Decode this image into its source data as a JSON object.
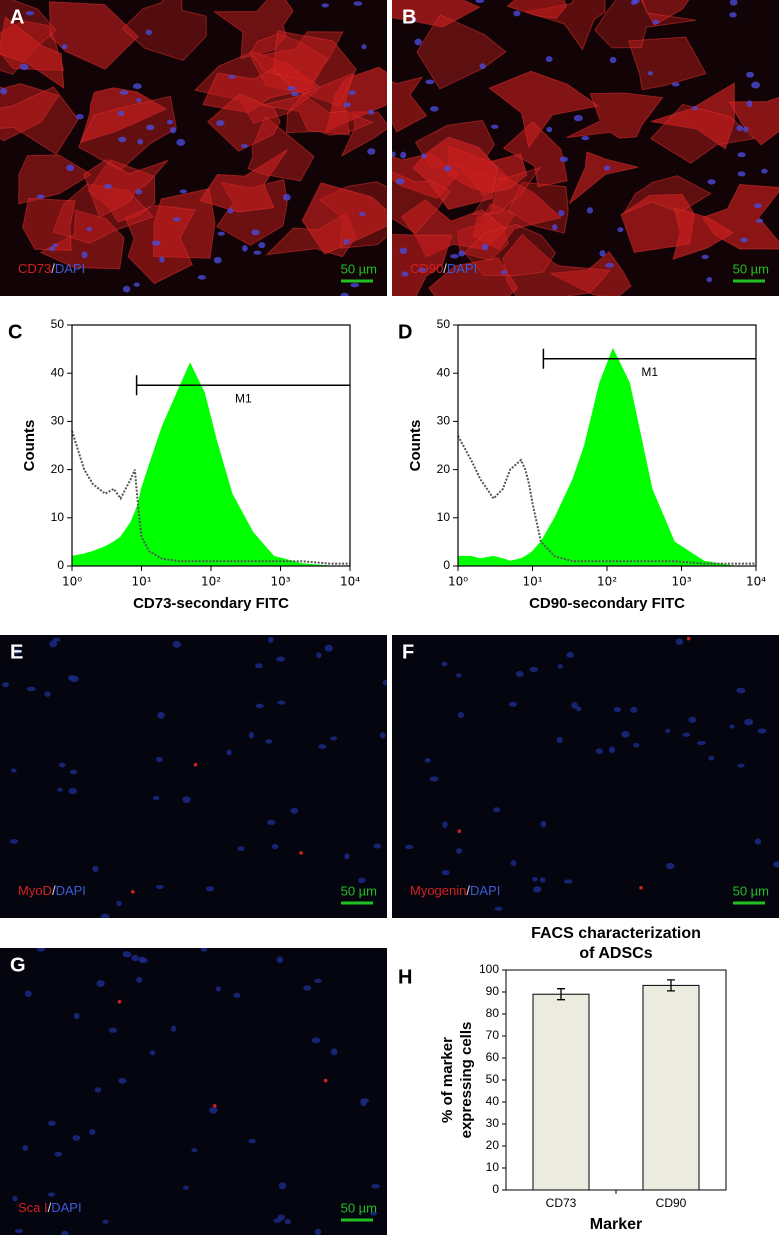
{
  "panels": [
    {
      "letter": "A",
      "caption": {
        "marker": "CD73",
        "separator": "/",
        "stain": "DAPI"
      },
      "scale": "50 µm"
    },
    {
      "letter": "B",
      "caption": {
        "marker": "CD90",
        "separator": "/",
        "stain": "DAPI"
      },
      "scale": "50 µm"
    },
    {
      "letter": "E",
      "caption": {
        "marker": "MyoD",
        "separator": "/",
        "stain": "DAPI"
      },
      "scale": "50 µm"
    },
    {
      "letter": "F",
      "caption": {
        "marker": "Myogenin",
        "separator": "/",
        "stain": "DAPI"
      },
      "scale": "50 µm"
    },
    {
      "letter": "G",
      "caption": {
        "marker": "Sca I",
        "separator": "/",
        "stain": "DAPI"
      },
      "scale": "50 µm"
    }
  ],
  "chart_data": [
    {
      "type": "histogram-area",
      "panel": "C",
      "x_label": "CD73-secondary FITC",
      "y_label": "Counts",
      "log_x": true,
      "x": [
        1,
        1.5,
        2,
        3,
        4,
        5,
        7,
        8,
        9,
        10,
        13,
        20,
        35,
        50,
        80,
        120,
        200,
        400,
        800,
        2000,
        5000,
        10000
      ],
      "series": [
        {
          "color": "#00ff00",
          "style": "area",
          "values": [
            2,
            2.5,
            3,
            4,
            5,
            6,
            9,
            11,
            13,
            16,
            21,
            29,
            37,
            42,
            36,
            26,
            15,
            7,
            2,
            0.5,
            0,
            0
          ]
        },
        {
          "color": "#555555",
          "style": "dotted",
          "values": [
            28,
            20,
            17,
            15,
            16,
            14,
            18,
            20,
            12,
            6,
            3,
            1.5,
            1,
            1,
            1,
            1,
            1,
            1,
            1,
            1,
            0.5,
            0.5
          ]
        }
      ],
      "gate": {
        "label": "M1",
        "start": 8.5,
        "level": 37.5
      },
      "xlim": [
        1,
        10000
      ],
      "xticks": [
        {
          "value": 1,
          "label": "10⁰"
        },
        {
          "value": 10,
          "label": "10¹"
        },
        {
          "value": 100,
          "label": "10²"
        },
        {
          "value": 1000,
          "label": "10³"
        },
        {
          "value": 10000,
          "label": "10⁴"
        }
      ],
      "ylim": [
        0,
        50
      ],
      "yticks": [
        0,
        10,
        20,
        30,
        40,
        50
      ]
    },
    {
      "type": "histogram-area",
      "panel": "D",
      "x_label": "CD90-secondary FITC",
      "y_label": "Counts",
      "log_x": true,
      "x": [
        1,
        1.5,
        2,
        3,
        4,
        5,
        7,
        8,
        9,
        10,
        13,
        20,
        35,
        50,
        80,
        120,
        200,
        400,
        800,
        2000,
        5000,
        10000
      ],
      "series": [
        {
          "color": "#00ff00",
          "style": "area",
          "values": [
            2,
            2,
            1.5,
            2,
            1.5,
            1,
            1.5,
            2,
            2.5,
            3,
            5,
            10,
            18,
            25,
            38,
            45,
            38,
            16,
            5,
            1,
            0,
            0
          ]
        },
        {
          "color": "#555555",
          "style": "dotted",
          "values": [
            27,
            22,
            18,
            14,
            16,
            20,
            22,
            20,
            17,
            13,
            5,
            2,
            1,
            1,
            1,
            1,
            1,
            1,
            1,
            0.5,
            0.5,
            0.5
          ]
        }
      ],
      "gate": {
        "label": "M1",
        "start": 14,
        "level": 43
      },
      "xlim": [
        1,
        10000
      ],
      "xticks": [
        {
          "value": 1,
          "label": "10⁰"
        },
        {
          "value": 10,
          "label": "10¹"
        },
        {
          "value": 100,
          "label": "10²"
        },
        {
          "value": 1000,
          "label": "10³"
        },
        {
          "value": 10000,
          "label": "10⁴"
        }
      ],
      "ylim": [
        0,
        50
      ],
      "yticks": [
        0,
        10,
        20,
        30,
        40,
        50
      ]
    },
    {
      "type": "bar",
      "panel": "H",
      "title": [
        "FACS characterization",
        "of ADSCs"
      ],
      "x_label": "Marker",
      "y_label": [
        "% of marker",
        "expressing cells"
      ],
      "categories": [
        "CD73",
        "CD90"
      ],
      "values": [
        89,
        93
      ],
      "errors": [
        2.5,
        2.5
      ],
      "color": "#ecebdf",
      "ylim": [
        0,
        100
      ],
      "yticks": [
        0,
        10,
        20,
        30,
        40,
        50,
        60,
        70,
        80,
        90,
        100
      ]
    }
  ]
}
